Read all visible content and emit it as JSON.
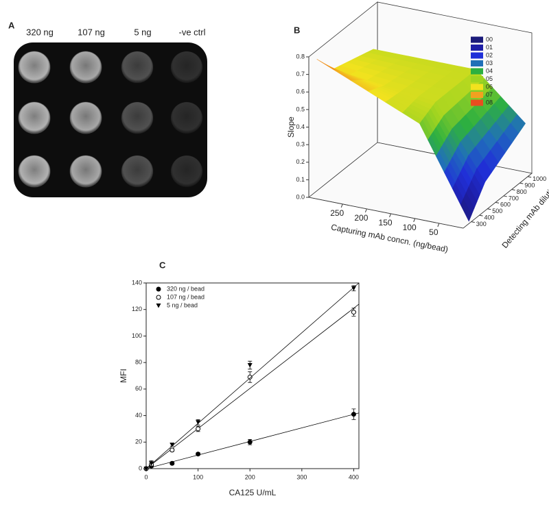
{
  "panel_a": {
    "label": "A",
    "columns": [
      "320 ng",
      "107 ng",
      "5 ng",
      "-ve ctrl"
    ]
  },
  "chart_data": [
    {
      "type": "surface3d",
      "label": "B",
      "xlabel": "Capturing mAb concn. (ng/bead)",
      "ylabel": "Detecting mAb dilution",
      "zlabel": "Slope",
      "x": [
        5,
        107,
        320
      ],
      "y": [
        300,
        500,
        1000
      ],
      "z": [
        [
          0.0,
          0.5,
          0.75
        ],
        [
          0.15,
          0.55,
          0.62
        ],
        [
          0.3,
          0.55,
          0.55
        ]
      ],
      "xlim": [
        0,
        320
      ],
      "ylim": [
        200,
        1050
      ],
      "zlim": [
        0,
        0.8
      ],
      "xticks": [
        250,
        200,
        150,
        100,
        50
      ],
      "yticks": [
        300,
        400,
        500,
        600,
        700,
        800,
        900,
        1000
      ],
      "zticks": [
        {
          "value": 0,
          "label": "0.0"
        },
        {
          "value": 0.1,
          "label": "0.1"
        },
        {
          "value": 0.2,
          "label": "0.2"
        },
        {
          "value": 0.3,
          "label": "0.3"
        },
        {
          "value": 0.4,
          "label": "0.4"
        },
        {
          "value": 0.5,
          "label": "0.5"
        },
        {
          "value": 0.6,
          "label": "0.6"
        },
        {
          "value": 0.7,
          "label": "0.7"
        },
        {
          "value": 0.8,
          "label": "0.8"
        }
      ],
      "legend": [
        {
          "name": "00",
          "value": 0,
          "color": "#1b1b7a"
        },
        {
          "name": "01",
          "value": 0.1,
          "color": "#1e1ea6"
        },
        {
          "name": "02",
          "value": 0.2,
          "color": "#2030d8"
        },
        {
          "name": "03",
          "value": 0.3,
          "color": "#2070b8"
        },
        {
          "name": "04",
          "value": 0.4,
          "color": "#2db040"
        },
        {
          "name": "05",
          "value": 0.5,
          "color": "#9fd420"
        },
        {
          "name": "06",
          "value": 0.6,
          "color": "#f2e21e"
        },
        {
          "name": "07",
          "value": 0.7,
          "color": "#f2a020"
        },
        {
          "name": "08",
          "value": 0.8,
          "color": "#e84e20"
        }
      ]
    },
    {
      "type": "scatter",
      "label": "C",
      "xlabel": "CA125 U/mL",
      "ylabel": "MFI",
      "xlim": [
        0,
        410
      ],
      "ylim": [
        0,
        140
      ],
      "xticks": [
        0,
        100,
        200,
        300,
        400
      ],
      "yticks": [
        0,
        20,
        40,
        60,
        80,
        100,
        120,
        140
      ],
      "x": [
        0,
        10,
        50,
        100,
        200,
        400
      ],
      "legend": "upper left",
      "series": [
        {
          "name": "320 ng / bead",
          "marker": "circle",
          "color": "#000000",
          "values": [
            0,
            2,
            4,
            11,
            20,
            41
          ],
          "errors": [
            0.5,
            1,
            1,
            1,
            2,
            4
          ],
          "fit": {
            "x": [
              0,
              410
            ],
            "values": [
              0,
              42
            ]
          }
        },
        {
          "name": "107 ng / bead",
          "marker": "open-circle",
          "color": "#000000",
          "values": [
            0,
            3,
            14,
            30,
            69,
            118
          ],
          "errors": [
            0.5,
            1,
            1,
            2,
            4,
            3
          ],
          "fit": {
            "x": [
              0,
              410
            ],
            "values": [
              0,
              124
            ]
          }
        },
        {
          "name": "5 ng / bead",
          "marker": "triangle-down",
          "color": "#000000",
          "values": [
            0,
            4,
            18,
            35,
            78,
            136
          ],
          "errors": [
            0.5,
            2,
            1,
            2,
            3,
            2
          ],
          "fit": {
            "x": [
              0,
              410
            ],
            "values": [
              0,
              140
            ]
          }
        }
      ]
    }
  ]
}
